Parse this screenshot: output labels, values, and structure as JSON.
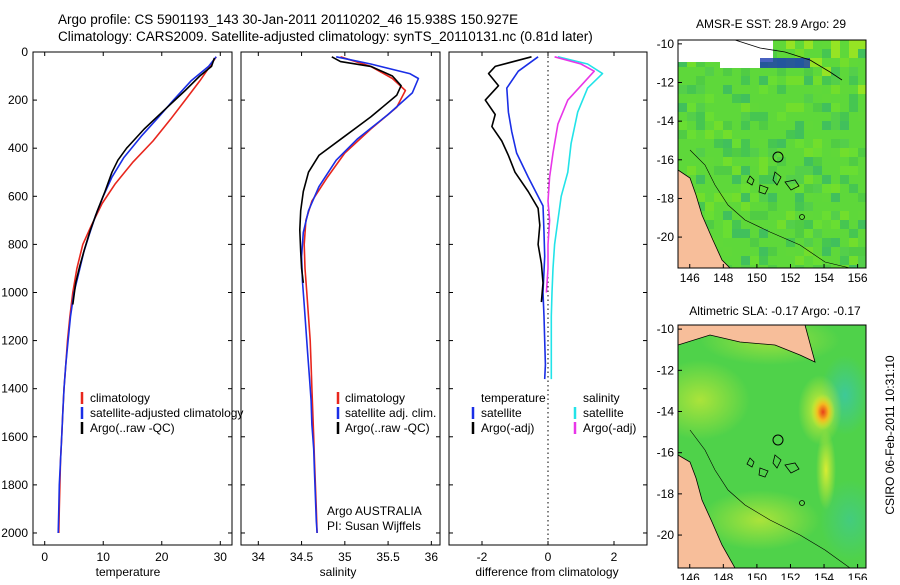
{
  "title_line1": "Argo profile: CS 5901193_143 30-Jan-2011 20110202_46 15.938S 150.927E",
  "title_line2": "Climatology: CARS2009. Satellite-adjusted climatology: synTS_20110131.nc (0.81d later)",
  "side_stamp": "CSIRO 06-Feb-2011 10:31:10",
  "credit_line1": "Argo AUSTRALIA",
  "credit_line2": "PI: Susan Wijffels",
  "colors": {
    "red": "#e8261d",
    "blue": "#1a2ee6",
    "black": "#000000",
    "cyan": "#22e3e8",
    "magenta": "#e836e8",
    "land": "#f7be9a"
  },
  "chart_data": [
    {
      "type": "line",
      "xlabel": "temperature",
      "ylim": [
        2050,
        0
      ],
      "xlim": [
        -2,
        32
      ],
      "xticks": [
        0,
        10,
        20,
        30
      ],
      "yticks": [
        0,
        200,
        400,
        600,
        800,
        1000,
        1200,
        1400,
        1600,
        1800,
        2000
      ],
      "legend": [
        "climatology",
        "satellite-adjusted climatology",
        "Argo(..raw -QC)"
      ],
      "series": [
        {
          "name": "climatology",
          "color": "red",
          "points": [
            [
              29.3,
              20
            ],
            [
              28.2,
              60
            ],
            [
              26.5,
              120
            ],
            [
              24,
              200
            ],
            [
              21.5,
              280
            ],
            [
              18.5,
              370
            ],
            [
              15,
              460
            ],
            [
              12,
              550
            ],
            [
              9.8,
              630
            ],
            [
              8,
              720
            ],
            [
              6.5,
              800
            ],
            [
              5.5,
              900
            ],
            [
              4.8,
              1000
            ],
            [
              4.3,
              1100
            ],
            [
              3.9,
              1200
            ],
            [
              3.6,
              1300
            ],
            [
              3.3,
              1400
            ],
            [
              3.1,
              1500
            ],
            [
              2.9,
              1600
            ],
            [
              2.7,
              1700
            ],
            [
              2.6,
              1800
            ],
            [
              2.5,
              1900
            ],
            [
              2.4,
              2000
            ]
          ]
        },
        {
          "name": "satellite-adjusted climatology",
          "color": "blue",
          "points": [
            [
              29.3,
              20
            ],
            [
              28,
              60
            ],
            [
              25,
              120
            ],
            [
              22,
              200
            ],
            [
              19.5,
              270
            ],
            [
              16.5,
              350
            ],
            [
              13.5,
              440
            ],
            [
              11.5,
              520
            ],
            [
              10,
              600
            ],
            [
              8.7,
              680
            ],
            [
              7.6,
              760
            ],
            [
              6.7,
              830
            ],
            [
              5.8,
              920
            ],
            [
              5,
              1000
            ],
            [
              4.4,
              1100
            ],
            [
              4,
              1200
            ],
            [
              3.6,
              1300
            ],
            [
              3.3,
              1400
            ],
            [
              3.1,
              1500
            ],
            [
              2.9,
              1600
            ],
            [
              2.7,
              1700
            ],
            [
              2.5,
              1800
            ],
            [
              2.4,
              1900
            ],
            [
              2.3,
              2000
            ]
          ]
        },
        {
          "name": "Argo(..raw -QC)",
          "color": "black",
          "points": [
            [
              29,
              25
            ],
            [
              28.5,
              60
            ],
            [
              26.5,
              100
            ],
            [
              24,
              160
            ],
            [
              20.5,
              240
            ],
            [
              17,
              320
            ],
            [
              14,
              400
            ],
            [
              12.5,
              450
            ],
            [
              11.5,
              500
            ],
            [
              10.3,
              580
            ],
            [
              9,
              660
            ],
            [
              7.8,
              740
            ],
            [
              6.8,
              820
            ],
            [
              6,
              890
            ],
            [
              5.3,
              960
            ],
            [
              4.8,
              1050
            ]
          ]
        }
      ]
    },
    {
      "type": "line",
      "xlabel": "salinity",
      "ylim": [
        2050,
        0
      ],
      "xlim": [
        33.8,
        36.1
      ],
      "xticks": [
        34,
        34.5,
        35,
        35.5,
        36
      ],
      "legend": [
        "climatology",
        "satellite adj. clim.",
        "Argo(..raw -QC)"
      ],
      "series": [
        {
          "name": "climatology",
          "color": "red",
          "points": [
            [
              34.95,
              20
            ],
            [
              35.3,
              60
            ],
            [
              35.55,
              110
            ],
            [
              35.7,
              160
            ],
            [
              35.6,
              230
            ],
            [
              35.3,
              320
            ],
            [
              35.0,
              420
            ],
            [
              34.8,
              520
            ],
            [
              34.62,
              620
            ],
            [
              34.55,
              700
            ],
            [
              34.53,
              800
            ],
            [
              34.54,
              900
            ],
            [
              34.56,
              1000
            ],
            [
              34.58,
              1100
            ],
            [
              34.6,
              1200
            ],
            [
              34.61,
              1300
            ],
            [
              34.62,
              1400
            ],
            [
              34.63,
              1500
            ],
            [
              34.64,
              1600
            ],
            [
              34.65,
              1700
            ],
            [
              34.66,
              1800
            ],
            [
              34.67,
              1900
            ],
            [
              34.68,
              2000
            ]
          ]
        },
        {
          "name": "satellite adj. clim.",
          "color": "blue",
          "points": [
            [
              34.9,
              20
            ],
            [
              35.3,
              50
            ],
            [
              35.75,
              90
            ],
            [
              35.85,
              110
            ],
            [
              35.78,
              170
            ],
            [
              35.5,
              260
            ],
            [
              35.15,
              360
            ],
            [
              34.9,
              450
            ],
            [
              34.7,
              560
            ],
            [
              34.58,
              660
            ],
            [
              34.52,
              750
            ],
            [
              34.5,
              850
            ],
            [
              34.51,
              950
            ],
            [
              34.53,
              1050
            ],
            [
              34.55,
              1150
            ],
            [
              34.57,
              1250
            ],
            [
              34.59,
              1350
            ],
            [
              34.61,
              1450
            ],
            [
              34.62,
              1550
            ],
            [
              34.64,
              1650
            ],
            [
              34.65,
              1750
            ],
            [
              34.66,
              1850
            ],
            [
              34.67,
              1950
            ],
            [
              34.68,
              2000
            ]
          ]
        },
        {
          "name": "Argo(..raw -QC)",
          "color": "black",
          "points": [
            [
              34.85,
              20
            ],
            [
              34.95,
              40
            ],
            [
              35.3,
              60
            ],
            [
              35.55,
              100
            ],
            [
              35.65,
              140
            ],
            [
              35.6,
              180
            ],
            [
              35.3,
              270
            ],
            [
              35.0,
              350
            ],
            [
              34.7,
              430
            ],
            [
              34.58,
              500
            ],
            [
              34.52,
              580
            ],
            [
              34.49,
              660
            ],
            [
              34.48,
              740
            ],
            [
              34.49,
              830
            ],
            [
              34.5,
              900
            ],
            [
              34.52,
              960
            ]
          ]
        }
      ]
    },
    {
      "type": "line",
      "xlabel": "difference from climatology",
      "ylim": [
        2050,
        0
      ],
      "xlim": [
        -3,
        3
      ],
      "xticks": [
        -2,
        0,
        2
      ],
      "legend": [
        "temperature",
        "satellite",
        "Argo(-adj)",
        "salinity",
        "satellite",
        "Argo(-adj)"
      ],
      "series": [
        {
          "name": "temperature satellite",
          "color": "blue",
          "points": [
            [
              -0.3,
              20
            ],
            [
              -0.9,
              80
            ],
            [
              -1.25,
              150
            ],
            [
              -1.2,
              250
            ],
            [
              -1.1,
              330
            ],
            [
              -0.95,
              420
            ],
            [
              -0.6,
              520
            ],
            [
              -0.15,
              640
            ],
            [
              -0.12,
              750
            ],
            [
              -0.1,
              850
            ],
            [
              -0.15,
              1000
            ],
            [
              -0.12,
              1100
            ],
            [
              -0.1,
              1200
            ],
            [
              -0.08,
              1300
            ],
            [
              -0.1,
              1360
            ]
          ]
        },
        {
          "name": "temperature Argo(-adj)",
          "color": "black",
          "points": [
            [
              -0.5,
              20
            ],
            [
              -1.6,
              60
            ],
            [
              -1.8,
              90
            ],
            [
              -1.5,
              140
            ],
            [
              -1.9,
              200
            ],
            [
              -1.6,
              260
            ],
            [
              -1.7,
              310
            ],
            [
              -1.4,
              370
            ],
            [
              -1.2,
              430
            ],
            [
              -1.0,
              500
            ],
            [
              -0.6,
              580
            ],
            [
              -0.3,
              650
            ],
            [
              -0.25,
              720
            ],
            [
              -0.3,
              800
            ],
            [
              -0.2,
              880
            ],
            [
              -0.15,
              960
            ],
            [
              -0.2,
              1040
            ]
          ]
        },
        {
          "name": "salinity satellite",
          "color": "cyan",
          "points": [
            [
              0.3,
              20
            ],
            [
              1.2,
              50
            ],
            [
              1.65,
              90
            ],
            [
              1.2,
              150
            ],
            [
              0.9,
              250
            ],
            [
              0.7,
              380
            ],
            [
              0.6,
              500
            ],
            [
              0.4,
              600
            ],
            [
              0.3,
              700
            ],
            [
              0.2,
              800
            ],
            [
              0.15,
              900
            ],
            [
              0.12,
              1000
            ],
            [
              0.1,
              1100
            ],
            [
              0.1,
              1200
            ],
            [
              0.1,
              1300
            ],
            [
              0.1,
              1360
            ]
          ]
        },
        {
          "name": "salinity Argo(-adj)",
          "color": "magenta",
          "points": [
            [
              0.2,
              20
            ],
            [
              1.0,
              50
            ],
            [
              1.4,
              80
            ],
            [
              1.0,
              140
            ],
            [
              0.6,
              200
            ],
            [
              0.3,
              300
            ],
            [
              0.15,
              420
            ],
            [
              0.05,
              520
            ],
            [
              0.0,
              620
            ],
            [
              0.05,
              700
            ],
            [
              0.0,
              800
            ],
            [
              0.0,
              900
            ],
            [
              -0.05,
              1000
            ]
          ]
        }
      ]
    },
    {
      "type": "heatmap",
      "title": "AMSR-E SST: 28.9 Argo: 29",
      "xticks": [
        146,
        148,
        150,
        152,
        154,
        156
      ],
      "yticks": [
        -10,
        -12,
        -14,
        -16,
        -18,
        -20
      ],
      "xlim": [
        145.3,
        156.5
      ],
      "ylim": [
        -21.6,
        -9.8
      ],
      "argo_position": [
        150.93,
        -15.94
      ]
    },
    {
      "type": "heatmap",
      "title": "Altimetric SLA: -0.17 Argo: -0.17",
      "xticks": [
        146,
        148,
        150,
        152,
        154,
        156
      ],
      "yticks": [
        -10,
        -12,
        -14,
        -16,
        -18,
        -20
      ],
      "xlim": [
        145.3,
        156.5
      ],
      "ylim": [
        -21.6,
        -9.8
      ],
      "argo_position": [
        150.93,
        -15.94
      ]
    }
  ]
}
